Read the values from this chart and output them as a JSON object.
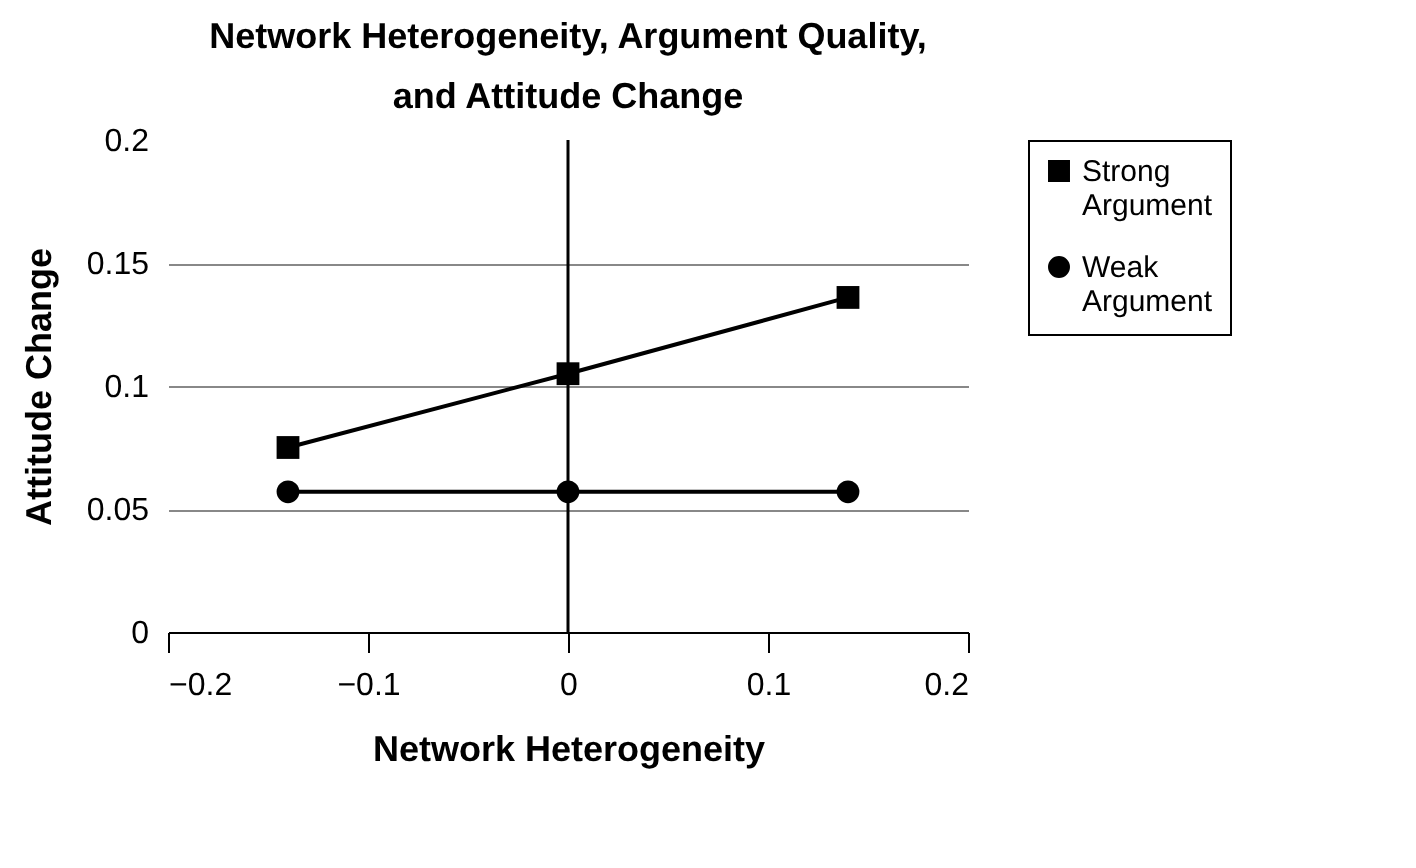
{
  "chart_data": {
    "type": "line",
    "title": "Network Heterogeneity, Argument Quality, and Attitude Change",
    "xlabel": "Network Heterogeneity",
    "ylabel": "Attitude Change",
    "x": [
      -0.14,
      0,
      0.14
    ],
    "series": [
      {
        "name": "Strong Argument",
        "color": "#000000",
        "marker": "square",
        "values": [
          0.075,
          0.105,
          0.136
        ]
      },
      {
        "name": "Weak Argument",
        "color": "#000000",
        "marker": "circle",
        "values": [
          0.057,
          0.057,
          0.057
        ]
      }
    ],
    "xlim": [
      -0.2,
      0.2
    ],
    "xticks": [
      -0.2,
      -0.1,
      0,
      0.1,
      0.2
    ],
    "ylim": [
      0,
      0.2
    ],
    "yticks": [
      0,
      0.05,
      0.1,
      0.15,
      0.2
    ],
    "ref_lines": [
      {
        "axis": "x",
        "value": 0
      }
    ],
    "grid": "y",
    "legend": "right",
    "line_style": "solid"
  }
}
